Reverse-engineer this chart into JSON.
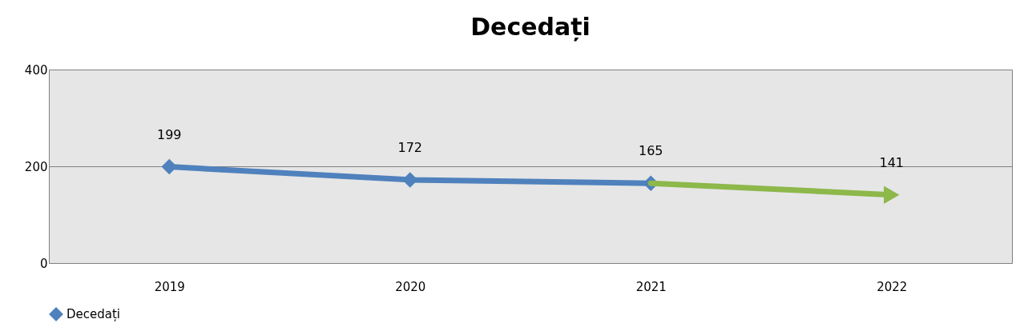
{
  "chart_data": {
    "type": "line",
    "title": "Decedați",
    "categories": [
      "2019",
      "2020",
      "2021",
      "2022"
    ],
    "series": [
      {
        "name": "Decedați",
        "color": "#4f81bd",
        "values": [
          199,
          172,
          165,
          null
        ],
        "marker": "diamond",
        "value_labels": [
          "199",
          "172",
          "165",
          null
        ]
      },
      {
        "color": "#8db84a",
        "values": [
          null,
          null,
          165,
          141
        ],
        "marker": "triangle",
        "value_labels": [
          null,
          null,
          null,
          "141"
        ]
      }
    ],
    "ylim": [
      0,
      400
    ],
    "yticks": [
      0,
      200,
      400
    ],
    "grid": "y",
    "legend": "bottom"
  }
}
